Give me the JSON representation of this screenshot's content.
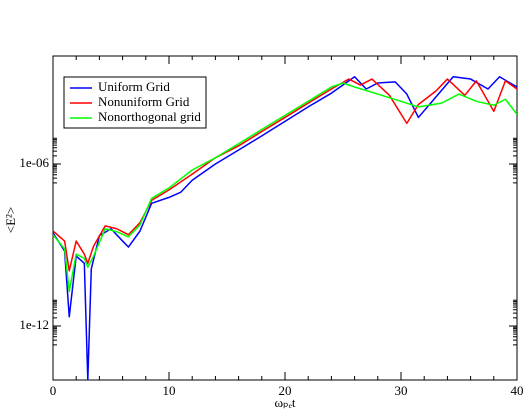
{
  "chart_data": {
    "type": "line",
    "log_y": true,
    "x_label": "ωₚₑt",
    "y_label": "<E²>",
    "xlim": [
      0,
      40
    ],
    "xticks": [
      0,
      10,
      20,
      30,
      40
    ],
    "ylim": [
      1e-14,
      0.01
    ],
    "yticks": [
      {
        "value": 1e-12,
        "label": "1e-12"
      },
      {
        "value": 1e-06,
        "label": "1e-06"
      }
    ],
    "legend": "upper left",
    "series": [
      {
        "name": "Uniform Grid",
        "color": "#0000ff",
        "x": [
          0,
          1,
          1.4,
          2,
          2.7,
          3,
          3.3,
          4,
          5,
          6,
          6.5,
          7.5,
          8.5,
          10,
          11,
          12,
          14,
          16,
          18,
          20,
          22,
          24,
          25.5,
          26,
          27,
          28,
          29.5,
          30.5,
          31.5,
          33,
          34.5,
          36,
          37.5,
          38.5,
          40
        ],
        "values": [
          2.8e-09,
          6e-10,
          2.2e-12,
          3.9e-10,
          2.1e-10,
          1e-14,
          1.3e-10,
          2.2e-09,
          4e-09,
          1.4e-09,
          8.4e-10,
          3.3e-09,
          3.5e-08,
          5.8e-08,
          8.9e-08,
          2.5e-07,
          1e-06,
          3.3e-06,
          1.1e-05,
          3.8e-05,
          0.00013,
          0.00042,
          0.0012,
          0.0017,
          0.0006,
          0.001,
          0.0011,
          0.00039,
          5.3e-05,
          0.0003,
          0.0017,
          0.0014,
          0.0006,
          0.0017,
          0.00071
        ]
      },
      {
        "name": "Nonuniform Grid",
        "color": "#ff0000",
        "x": [
          0,
          1,
          1.4,
          2,
          2.7,
          3,
          3.5,
          4.5,
          5.5,
          6.5,
          7.5,
          8.5,
          10,
          12,
          14,
          16,
          18,
          20,
          22,
          24,
          25.5,
          26.5,
          27.5,
          29,
          30.5,
          31.5,
          33,
          34,
          35.5,
          36.5,
          38,
          39,
          40
        ],
        "values": [
          3.3e-09,
          1.4e-09,
          1.1e-10,
          1.4e-09,
          4.6e-10,
          2.1e-10,
          9.1e-10,
          5.1e-09,
          4e-09,
          2.4e-09,
          6.7e-09,
          4.5e-08,
          1.1e-07,
          4.2e-07,
          1.7e-06,
          4.7e-06,
          1.6e-05,
          5.3e-05,
          0.00018,
          0.0006,
          0.0014,
          0.00084,
          0.0014,
          0.00035,
          3.2e-05,
          0.00016,
          0.0005,
          0.0014,
          0.00035,
          0.0012,
          8.9e-05,
          0.0012,
          0.0006
        ]
      },
      {
        "name": "Nonorthogonal grid",
        "color": "#00ff00",
        "x": [
          0,
          1,
          1.4,
          2,
          2.7,
          3,
          3.5,
          4.5,
          5.5,
          6.5,
          7.5,
          8.5,
          10,
          12,
          14,
          16,
          18,
          20,
          22,
          24,
          25,
          26,
          28,
          30,
          31.5,
          33.5,
          35,
          36.5,
          38,
          39,
          40
        ],
        "values": [
          2.4e-09,
          7.1e-10,
          1.9e-11,
          4.6e-10,
          3.2e-10,
          1.5e-10,
          3.9e-10,
          4e-09,
          3.1e-09,
          2e-09,
          5.6e-09,
          5.3e-08,
          1.3e-07,
          6e-07,
          1.7e-06,
          5.6e-06,
          1.9e-05,
          6.3e-05,
          0.00021,
          0.00071,
          0.001,
          0.00071,
          0.00039,
          0.00021,
          0.00013,
          0.00018,
          0.00039,
          0.00021,
          0.00015,
          0.00025,
          6.9e-05
        ]
      }
    ]
  }
}
